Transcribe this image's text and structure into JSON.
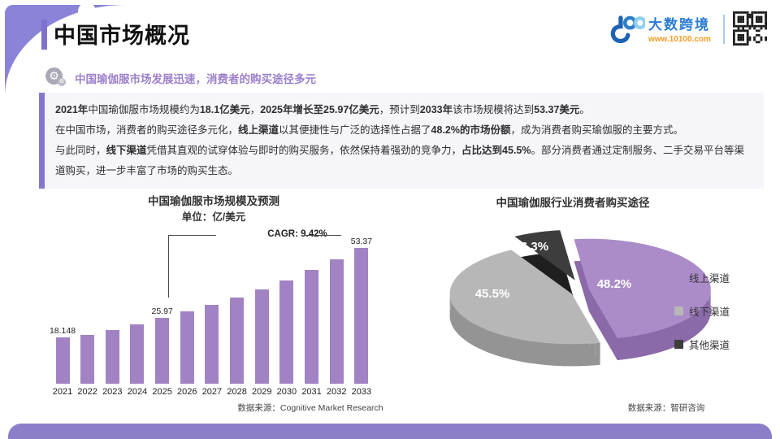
{
  "header": {
    "title": "中国市场概况",
    "subtitle": "中国瑜伽服市场发展迅速，消费者的购买途径多元",
    "logo": {
      "brand": "大数跨境",
      "url": "www.10100.com"
    }
  },
  "summary": {
    "sentences": [
      [
        {
          "t": "2021年",
          "b": 1
        },
        {
          "t": "中国瑜伽服市场规模约为",
          "b": 0
        },
        {
          "t": "18.1亿美元",
          "b": 1
        },
        {
          "t": "，",
          "b": 0
        },
        {
          "t": "2025年增长至25.97亿美元",
          "b": 1
        },
        {
          "t": "，预计到",
          "b": 0
        },
        {
          "t": "2033年",
          "b": 1
        },
        {
          "t": "该市场规模将达到",
          "b": 0
        },
        {
          "t": "53.37美元",
          "b": 1
        },
        {
          "t": "。",
          "b": 0
        }
      ],
      [
        {
          "t": "在中国市场，消费者的购买途径多元化，",
          "b": 0
        },
        {
          "t": "线上渠道",
          "b": 1
        },
        {
          "t": "以其便捷性与广泛的选择性占据了",
          "b": 0
        },
        {
          "t": "48.2%的市场份额",
          "b": 1
        },
        {
          "t": "，成为消费者购买瑜伽服的主要方式。",
          "b": 0
        }
      ],
      [
        {
          "t": "与此同时，",
          "b": 0
        },
        {
          "t": "线下渠道",
          "b": 1
        },
        {
          "t": "凭借其直观的试穿体验与即时的购买服务，依然保持着强劲的竞争力，",
          "b": 0
        },
        {
          "t": "占比达到45.5%",
          "b": 1
        },
        {
          "t": "。部分消费者通过定制服务、二手交易平台等渠道购买，进一步丰富了市场的购买生态。",
          "b": 0
        }
      ]
    ]
  },
  "chart_data": [
    {
      "type": "bar",
      "title": "中国瑜伽服市场规模及预测",
      "subtitle": "单位：亿/美元",
      "xlabel": "",
      "ylabel": "",
      "categories": [
        "2021",
        "2022",
        "2023",
        "2024",
        "2025",
        "2026",
        "2027",
        "2028",
        "2029",
        "2030",
        "2031",
        "2032",
        "2033"
      ],
      "values": [
        18.148,
        19.3,
        21.2,
        23.2,
        25.97,
        28.4,
        31.1,
        34.0,
        37.2,
        40.7,
        44.6,
        48.8,
        53.37
      ],
      "labeled_points": {
        "2021": "18.148",
        "2025": "25.97",
        "2033": "53.37"
      },
      "annotation": "CAGR: 9.42%",
      "bar_color": "#a183c4",
      "grid": false,
      "source": "数据来源：Cognitive Market Research"
    },
    {
      "type": "pie",
      "title": "中国瑜伽服行业消费者购买途径",
      "legend_position": "right",
      "slices": [
        {
          "label": "线上渠道",
          "value": 48.2,
          "display": "48.2%",
          "color": "#ab8cc9",
          "side": "#8a6aa8"
        },
        {
          "label": "线下渠道",
          "value": 45.5,
          "display": "45.5%",
          "color": "#b7b7b7",
          "side": "#949494"
        },
        {
          "label": "其他渠道",
          "value": 6.3,
          "display": "6.3%",
          "color": "#3d3d3d",
          "side": "#1f1f1f"
        }
      ],
      "source": "数据来源：智研咨询"
    }
  ]
}
